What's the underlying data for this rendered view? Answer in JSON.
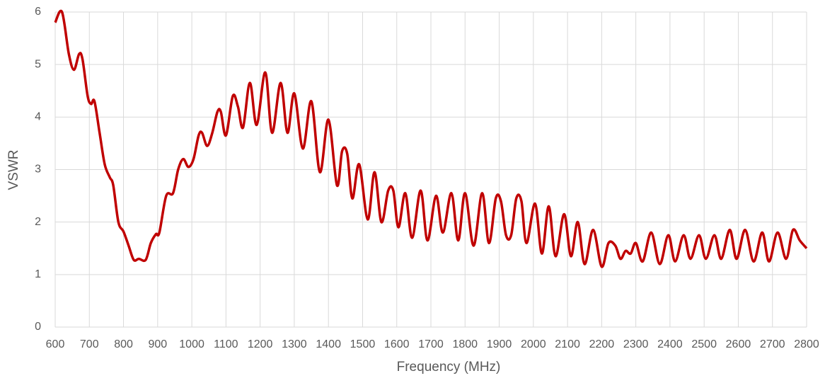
{
  "chart_data": {
    "type": "line",
    "x_label": "Frequency (MHz)",
    "y_label": "VSWR",
    "x": [
      600,
      620,
      640,
      655,
      670,
      680,
      695,
      705,
      715,
      730,
      745,
      760,
      770,
      785,
      800,
      815,
      830,
      845,
      865,
      880,
      895,
      905,
      925,
      945,
      960,
      975,
      990,
      1005,
      1020,
      1030,
      1045,
      1060,
      1075,
      1085,
      1100,
      1120,
      1135,
      1150,
      1170,
      1190,
      1215,
      1235,
      1260,
      1280,
      1300,
      1325,
      1350,
      1375,
      1400,
      1425,
      1440,
      1455,
      1470,
      1490,
      1515,
      1535,
      1555,
      1575,
      1590,
      1605,
      1625,
      1645,
      1670,
      1690,
      1715,
      1735,
      1760,
      1780,
      1800,
      1825,
      1850,
      1870,
      1890,
      1905,
      1920,
      1935,
      1950,
      1965,
      1980,
      2005,
      2025,
      2045,
      2065,
      2090,
      2110,
      2130,
      2150,
      2175,
      2200,
      2220,
      2240,
      2255,
      2270,
      2285,
      2300,
      2320,
      2345,
      2370,
      2395,
      2415,
      2440,
      2460,
      2485,
      2505,
      2530,
      2550,
      2575,
      2595,
      2620,
      2645,
      2670,
      2690,
      2715,
      2740,
      2760,
      2780,
      2800
    ],
    "series": [
      {
        "name": "VSWR",
        "color": "#c00000",
        "values": [
          5.8,
          6.0,
          5.2,
          4.9,
          5.2,
          5.1,
          4.4,
          4.25,
          4.3,
          3.7,
          3.1,
          2.85,
          2.7,
          2.0,
          1.82,
          1.55,
          1.28,
          1.3,
          1.28,
          1.6,
          1.77,
          1.8,
          2.5,
          2.55,
          3.0,
          3.2,
          3.05,
          3.2,
          3.65,
          3.7,
          3.45,
          3.7,
          4.1,
          4.1,
          3.65,
          4.4,
          4.2,
          3.8,
          4.65,
          3.85,
          4.85,
          3.7,
          4.65,
          3.7,
          4.45,
          3.4,
          4.3,
          2.95,
          3.95,
          2.7,
          3.35,
          3.3,
          2.45,
          3.1,
          2.05,
          2.95,
          2.0,
          2.6,
          2.6,
          1.9,
          2.55,
          1.7,
          2.6,
          1.65,
          2.5,
          1.8,
          2.55,
          1.65,
          2.55,
          1.55,
          2.55,
          1.6,
          2.45,
          2.4,
          1.75,
          1.75,
          2.45,
          2.4,
          1.6,
          2.35,
          1.4,
          2.3,
          1.35,
          2.15,
          1.35,
          2.0,
          1.2,
          1.85,
          1.15,
          1.6,
          1.55,
          1.3,
          1.45,
          1.4,
          1.6,
          1.25,
          1.8,
          1.2,
          1.75,
          1.25,
          1.75,
          1.3,
          1.75,
          1.3,
          1.75,
          1.3,
          1.85,
          1.3,
          1.85,
          1.25,
          1.8,
          1.25,
          1.8,
          1.3,
          1.85,
          1.65,
          1.5
        ]
      }
    ],
    "xlim": [
      600,
      2800
    ],
    "xticks": [
      600,
      700,
      800,
      900,
      1000,
      1100,
      1200,
      1300,
      1400,
      1500,
      1600,
      1700,
      1800,
      1900,
      2000,
      2100,
      2200,
      2300,
      2400,
      2500,
      2600,
      2700,
      2800
    ],
    "ylim": [
      0,
      6
    ],
    "yticks": [
      0,
      1,
      2,
      3,
      4,
      5,
      6
    ],
    "grid": true
  }
}
